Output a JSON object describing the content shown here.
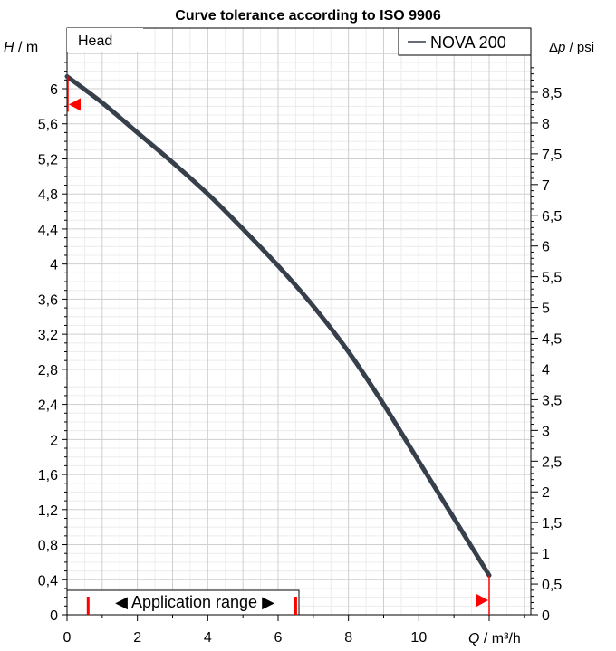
{
  "chart_data": {
    "type": "line",
    "title": "Curve tolerance according to ISO 9906",
    "y_label_var": "H",
    "y_label_unit": " / m",
    "y2_label_var": "p",
    "y2_label_prefix": "Δ",
    "y2_label_unit": " / psi",
    "x_label_var": "Q",
    "x_label_unit": " / m³/h",
    "panel_label": "Head",
    "xlim": [
      0,
      11
    ],
    "ylim": [
      0,
      6.5
    ],
    "y2lim": [
      0,
      9.2439
    ],
    "x_ticks": [
      0,
      2,
      4,
      6,
      8,
      10
    ],
    "y_ticks": [
      "0",
      "0,4",
      "0,8",
      "1,2",
      "1,6",
      "2",
      "2,4",
      "2,8",
      "3,2",
      "3,6",
      "4",
      "4,4",
      "4,8",
      "5,2",
      "5,6",
      "6"
    ],
    "y_tick_values": [
      0,
      0.4,
      0.8,
      1.2,
      1.6,
      2,
      2.4,
      2.8,
      3.2,
      3.6,
      4,
      4.4,
      4.8,
      5.2,
      5.6,
      6
    ],
    "y2_ticks": [
      "0",
      "0,5",
      "1",
      "1,5",
      "2",
      "2,5",
      "3",
      "3,5",
      "4",
      "4,5",
      "5",
      "5,5",
      "6",
      "6,5",
      "7",
      "7,5",
      "8",
      "8,5"
    ],
    "y2_tick_values": [
      0,
      0.5,
      1,
      1.5,
      2,
      2.5,
      3,
      3.5,
      4,
      4.5,
      5,
      5.5,
      6,
      6.5,
      7,
      7.5,
      8,
      8.5
    ],
    "grid": true,
    "legend_position": "top-right",
    "series": [
      {
        "name": "NOVA 200",
        "color": "#363f4a",
        "x": [
          0,
          1,
          2,
          3,
          4,
          5,
          6,
          7,
          8,
          9,
          10,
          11,
          12
        ],
        "y": [
          6.14,
          5.84,
          5.5,
          5.16,
          4.8,
          4.4,
          3.98,
          3.52,
          3.0,
          2.4,
          1.75,
          1.1,
          0.45
        ]
      }
    ],
    "tolerance_markers": {
      "color": "#ff0000",
      "max_head_mark": 5.82,
      "max_flow_mark": 12
    },
    "application_range": {
      "label": "Application range",
      "from": 0.6,
      "to": 6.5,
      "color": "#ff0000"
    }
  }
}
